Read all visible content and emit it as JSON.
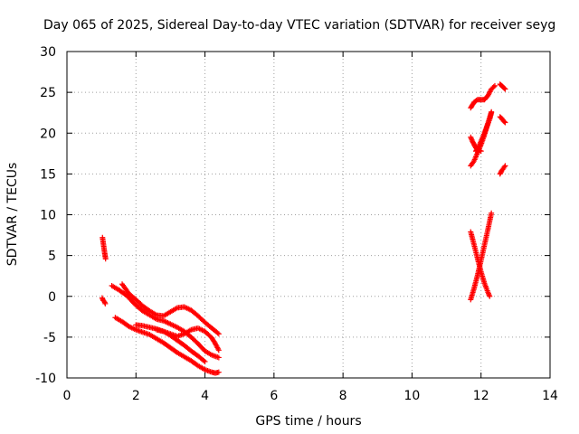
{
  "chart_data": {
    "type": "scatter",
    "title": "Day 065 of 2025, Sidereal Day-to-day VTEC variation (SDTVAR) for receiver seyg",
    "xlabel": "GPS time / hours",
    "ylabel": "SDTVAR / TECUs",
    "xlim": [
      0,
      14
    ],
    "ylim": [
      -10,
      30
    ],
    "xticks": [
      0,
      2,
      4,
      6,
      8,
      10,
      12,
      14
    ],
    "yticks": [
      -10,
      -5,
      0,
      5,
      10,
      15,
      20,
      25,
      30
    ],
    "grid": true,
    "marker": "+",
    "color": "#ff0000",
    "series": [
      {
        "x": [
          1.03,
          1.06,
          1.09,
          1.12
        ],
        "y": [
          7.2,
          6.3,
          5.4,
          4.6
        ]
      },
      {
        "x": [
          1.02,
          1.05,
          1.08,
          1.11
        ],
        "y": [
          -0.2,
          -0.5,
          -0.6,
          -0.9
        ]
      },
      {
        "x": [
          1.3,
          1.5,
          1.7,
          1.8,
          2.0,
          2.2,
          2.4,
          2.6,
          2.8,
          3.0,
          3.2,
          3.4,
          3.6,
          3.8,
          4.0,
          4.2,
          4.4
        ],
        "y": [
          1.3,
          0.8,
          0.2,
          -0.2,
          -1.1,
          -1.8,
          -2.3,
          -2.8,
          -3.0,
          -3.4,
          -3.8,
          -4.3,
          -5.0,
          -5.8,
          -6.7,
          -7.2,
          -7.5
        ]
      },
      {
        "x": [
          1.6,
          1.8,
          2.0,
          2.2,
          2.4,
          2.6,
          2.8,
          3.0,
          3.2,
          3.4,
          3.6,
          3.8,
          4.0,
          4.2,
          4.4
        ],
        "y": [
          1.5,
          0.3,
          -0.4,
          -1.2,
          -1.8,
          -2.3,
          -2.4,
          -1.9,
          -1.4,
          -1.3,
          -1.7,
          -2.4,
          -3.2,
          -3.9,
          -4.6
        ]
      },
      {
        "x": [
          1.4,
          1.6,
          1.8,
          2.0,
          2.2,
          2.4,
          2.6,
          2.8,
          3.0,
          3.2,
          3.4,
          3.6,
          3.8,
          4.0,
          4.2,
          4.3,
          4.4
        ],
        "y": [
          -2.6,
          -3.1,
          -3.7,
          -4.1,
          -4.4,
          -4.7,
          -5.2,
          -5.7,
          -6.3,
          -6.9,
          -7.4,
          -7.9,
          -8.5,
          -9.0,
          -9.3,
          -9.4,
          -9.3
        ]
      },
      {
        "x": [
          2.6,
          2.8,
          3.0,
          3.2,
          3.4,
          3.6,
          3.8,
          4.0,
          4.2,
          4.3,
          4.4
        ],
        "y": [
          -4.1,
          -4.3,
          -4.6,
          -4.9,
          -4.6,
          -4.1,
          -3.9,
          -4.3,
          -5.1,
          -5.8,
          -6.6
        ]
      },
      {
        "x": [
          2.0,
          2.2,
          2.4,
          2.6,
          2.8,
          3.0,
          3.2,
          3.4,
          3.6,
          3.8,
          4.0
        ],
        "y": [
          -3.5,
          -3.6,
          -3.8,
          -4.0,
          -4.3,
          -4.8,
          -5.4,
          -6.0,
          -6.7,
          -7.3,
          -8.0
        ]
      },
      {
        "x": [
          11.7,
          11.8,
          11.9,
          12.0,
          12.1,
          12.2,
          12.3,
          12.4
        ],
        "y": [
          23.1,
          23.8,
          24.1,
          24.1,
          24.1,
          24.6,
          25.4,
          25.8
        ]
      },
      {
        "x": [
          12.55,
          12.6,
          12.65,
          12.7
        ],
        "y": [
          26.0,
          25.8,
          25.6,
          25.4
        ]
      },
      {
        "x": [
          11.7,
          11.75,
          11.8,
          11.85,
          11.9,
          12.0
        ],
        "y": [
          19.5,
          19.0,
          18.6,
          18.2,
          18.0,
          17.8
        ]
      },
      {
        "x": [
          11.7,
          11.8,
          11.9,
          12.0,
          12.1,
          12.2,
          12.3
        ],
        "y": [
          16.0,
          16.6,
          17.6,
          18.6,
          19.8,
          21.2,
          22.6
        ]
      },
      {
        "x": [
          11.85,
          11.95,
          12.05,
          12.15,
          12.25,
          12.3
        ],
        "y": [
          17.8,
          18.5,
          19.5,
          20.6,
          21.7,
          22.5
        ]
      },
      {
        "x": [
          12.55,
          12.6,
          12.65,
          12.7
        ],
        "y": [
          22.0,
          21.8,
          21.5,
          21.3
        ]
      },
      {
        "x": [
          12.55,
          12.6,
          12.65,
          12.7
        ],
        "y": [
          15.0,
          15.4,
          15.7,
          16.0
        ]
      },
      {
        "x": [
          11.7,
          11.8,
          11.9,
          12.0,
          12.1,
          12.2,
          12.3
        ],
        "y": [
          -0.4,
          1.0,
          2.6,
          4.4,
          6.3,
          8.2,
          10.2
        ]
      },
      {
        "x": [
          11.7,
          11.8,
          11.9,
          12.0,
          12.1,
          12.2,
          12.25
        ],
        "y": [
          7.9,
          6.3,
          4.6,
          3.0,
          1.6,
          0.5,
          0.0
        ]
      }
    ]
  }
}
